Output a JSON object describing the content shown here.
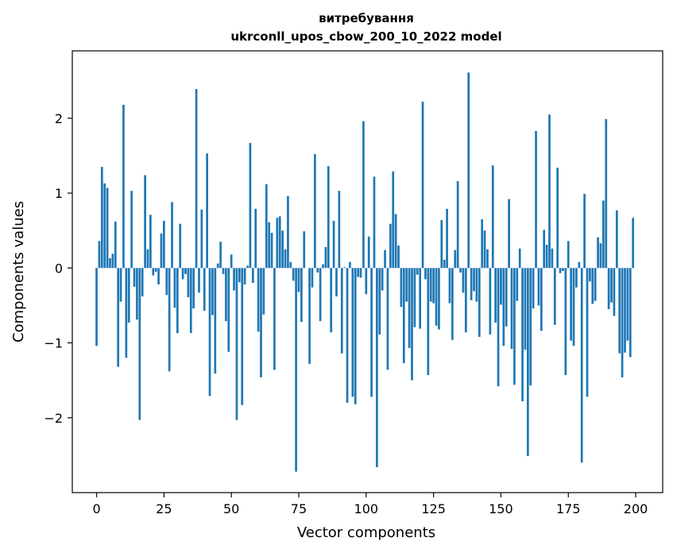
{
  "chart_data": {
    "type": "bar",
    "title": "витребування",
    "subtitle": "ukrconll_upos_cbow_200_10_2022 model",
    "xlabel": "Vector components",
    "ylabel": "Components values",
    "xlim": [
      -9,
      210
    ],
    "ylim": [
      -3.0,
      2.9
    ],
    "xticks": [
      0,
      25,
      50,
      75,
      100,
      125,
      150,
      175,
      200
    ],
    "xtick_labels": [
      "0",
      "25",
      "50",
      "75",
      "100",
      "125",
      "150",
      "175",
      "200"
    ],
    "yticks": [
      -2,
      -1,
      0,
      1,
      2
    ],
    "ytick_labels": [
      "−2",
      "−1",
      "0",
      "1",
      "2"
    ],
    "bar_color": "#1f77b4",
    "grid": false,
    "x": [
      0,
      1,
      2,
      3,
      4,
      5,
      6,
      7,
      8,
      9,
      10,
      11,
      12,
      13,
      14,
      15,
      16,
      17,
      18,
      19,
      20,
      21,
      22,
      23,
      24,
      25,
      26,
      27,
      28,
      29,
      30,
      31,
      32,
      33,
      34,
      35,
      36,
      37,
      38,
      39,
      40,
      41,
      42,
      43,
      44,
      45,
      46,
      47,
      48,
      49,
      50,
      51,
      52,
      53,
      54,
      55,
      56,
      57,
      58,
      59,
      60,
      61,
      62,
      63,
      64,
      65,
      66,
      67,
      68,
      69,
      70,
      71,
      72,
      73,
      74,
      75,
      76,
      77,
      78,
      79,
      80,
      81,
      82,
      83,
      84,
      85,
      86,
      87,
      88,
      89,
      90,
      91,
      92,
      93,
      94,
      95,
      96,
      97,
      98,
      99,
      100,
      101,
      102,
      103,
      104,
      105,
      106,
      107,
      108,
      109,
      110,
      111,
      112,
      113,
      114,
      115,
      116,
      117,
      118,
      119,
      120,
      121,
      122,
      123,
      124,
      125,
      126,
      127,
      128,
      129,
      130,
      131,
      132,
      133,
      134,
      135,
      136,
      137,
      138,
      139,
      140,
      141,
      142,
      143,
      144,
      145,
      146,
      147,
      148,
      149,
      150,
      151,
      152,
      153,
      154,
      155,
      156,
      157,
      158,
      159,
      160,
      161,
      162,
      163,
      164,
      165,
      166,
      167,
      168,
      169,
      170,
      171,
      172,
      173,
      174,
      175,
      176,
      177,
      178,
      179,
      180,
      181,
      182,
      183,
      184,
      185,
      186,
      187,
      188,
      189,
      190,
      191,
      192,
      193,
      194,
      195,
      196,
      197,
      198,
      199
    ],
    "values": [
      -1.04,
      0.36,
      1.35,
      1.13,
      1.07,
      0.13,
      0.19,
      0.62,
      -1.32,
      -0.45,
      2.18,
      -1.2,
      -0.73,
      1.03,
      -0.25,
      -0.69,
      -2.03,
      -0.38,
      1.24,
      0.25,
      0.71,
      -0.1,
      -0.05,
      -0.22,
      0.46,
      0.63,
      -0.36,
      -1.38,
      0.88,
      -0.53,
      -0.87,
      0.59,
      -0.15,
      -0.08,
      -0.39,
      -0.87,
      -0.54,
      2.39,
      -0.33,
      0.78,
      -0.57,
      1.53,
      -1.71,
      -0.63,
      -1.41,
      0.06,
      0.35,
      -0.08,
      -0.71,
      -1.12,
      0.18,
      -0.3,
      -2.03,
      -0.19,
      -1.83,
      -0.22,
      0.03,
      1.67,
      -0.2,
      0.79,
      -0.85,
      -1.46,
      -0.62,
      1.12,
      0.61,
      0.47,
      -1.36,
      0.67,
      0.69,
      0.5,
      0.25,
      0.96,
      0.08,
      -0.17,
      -2.72,
      -0.32,
      -0.72,
      0.49,
      0.0,
      -1.28,
      -0.26,
      1.52,
      -0.06,
      -0.71,
      0.05,
      0.28,
      1.36,
      -0.86,
      0.63,
      -0.38,
      1.03,
      -1.14,
      0.01,
      -1.8,
      0.08,
      -1.72,
      -1.82,
      -0.12,
      -0.13,
      1.96,
      -0.35,
      0.42,
      -1.72,
      1.22,
      -2.66,
      -0.89,
      -0.3,
      0.24,
      -1.36,
      0.59,
      1.29,
      0.72,
      0.3,
      -0.52,
      -1.27,
      -0.45,
      -1.07,
      -1.5,
      -0.79,
      -0.09,
      -0.81,
      2.22,
      -0.15,
      -1.43,
      -0.45,
      -0.47,
      -0.77,
      -0.82,
      0.64,
      0.11,
      0.79,
      -0.47,
      -0.96,
      0.24,
      1.16,
      -0.06,
      -0.33,
      -0.86,
      2.61,
      -0.43,
      -0.31,
      -0.45,
      -0.92,
      0.65,
      0.5,
      0.25,
      -0.89,
      1.37,
      -0.73,
      -1.58,
      -0.49,
      -1.04,
      -0.78,
      0.92,
      -1.08,
      -1.56,
      -0.44,
      0.26,
      -1.78,
      -1.09,
      -2.51,
      -1.57,
      -0.54,
      1.83,
      -0.5,
      -0.84,
      0.51,
      0.31,
      2.05,
      0.26,
      -0.76,
      1.34,
      -0.07,
      -0.04,
      -1.43,
      0.36,
      -0.97,
      -1.04,
      -0.26,
      0.08,
      -2.6,
      0.99,
      -1.72,
      -0.18,
      -0.48,
      -0.44,
      0.41,
      0.33,
      0.9,
      1.99,
      -0.55,
      -0.46,
      -0.64,
      0.77,
      -1.14,
      -1.46,
      -1.13,
      -0.97,
      -1.19,
      0.67
    ]
  }
}
